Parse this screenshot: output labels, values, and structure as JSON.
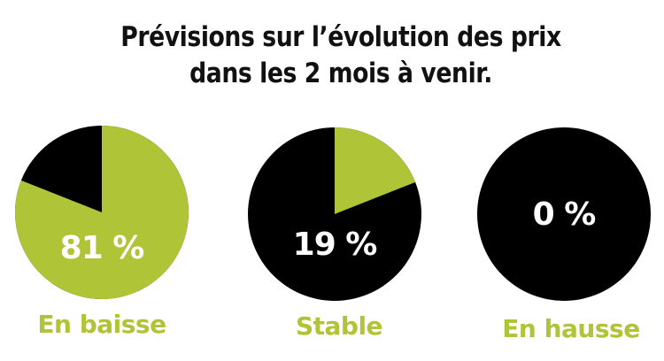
{
  "title": {
    "line1": "Prévisions sur l’évolution des prix",
    "line2": "dans les 2 mois à venir."
  },
  "colors": {
    "accent": "#afc436",
    "dark": "#000000",
    "text": "#111111",
    "background": "#ffffff"
  },
  "pies": [
    {
      "label": "En baisse",
      "value_text": "81 %",
      "value": 81
    },
    {
      "label": "Stable",
      "value_text": "19 %",
      "value": 19
    },
    {
      "label": "En hausse",
      "value_text": "0 %",
      "value": 0
    }
  ],
  "chart_data": {
    "type": "pie",
    "title": "Prévisions sur l’évolution des prix dans les 2 mois à venir.",
    "categories": [
      "En baisse",
      "Stable",
      "En hausse"
    ],
    "values": [
      81,
      19,
      0
    ],
    "unit": "%",
    "layout": "three separate pies, highlighted share in green (#afc436), remainder in black",
    "legend": "category labels below each pie"
  }
}
